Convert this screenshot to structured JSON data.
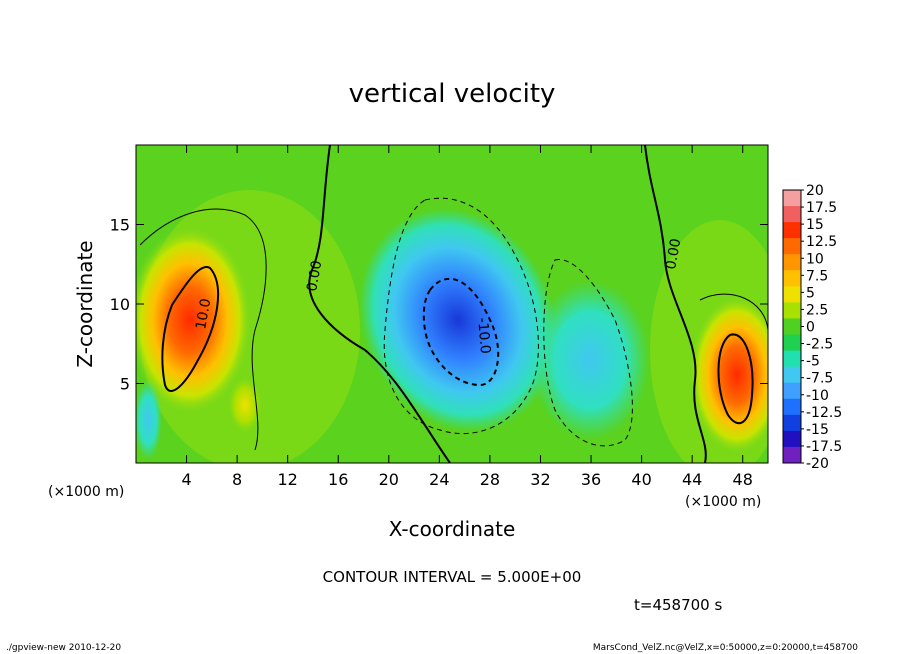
{
  "chart_data": {
    "type": "heatmap",
    "title": "vertical velocity",
    "xlabel": "X-coordinate",
    "ylabel": "Z-coordinate",
    "x_unit_left": "(×1000 m)",
    "x_unit_right": "(×1000 m)",
    "xlim": [
      0,
      50
    ],
    "ylim": [
      0,
      20
    ],
    "x_ticks": [
      4,
      8,
      12,
      16,
      20,
      24,
      28,
      32,
      36,
      40,
      44,
      48
    ],
    "y_ticks": [
      5,
      10,
      15
    ],
    "contour_labels": [
      "0.00",
      "10.0",
      "-10.0",
      "0.00"
    ],
    "colorbar": {
      "labels": [
        "20",
        "17.5",
        "15",
        "12.5",
        "10",
        "7.5",
        "5",
        "2.5",
        "0",
        "-2.5",
        "-5",
        "-7.5",
        "-10",
        "-12.5",
        "-15",
        "-17.5",
        "-20"
      ],
      "colors": [
        "#f4a0a0",
        "#f06060",
        "#ff3000",
        "#ff6a00",
        "#ff9600",
        "#ffc000",
        "#f0e000",
        "#a8e000",
        "#50d020",
        "#20d050",
        "#20e0b0",
        "#40c8f0",
        "#40a0ff",
        "#2070ff",
        "#1040e0",
        "#2010c0",
        "#7020c0"
      ]
    },
    "contour_interval": "CONTOUR INTERVAL = 5.000E+00",
    "time": "t=458700 s"
  },
  "footer": {
    "left": "./gpview-new  2010-12-20",
    "right": "MarsCond_VelZ.nc@VelZ,x=0:50000,z=0:20000,t=458700"
  }
}
